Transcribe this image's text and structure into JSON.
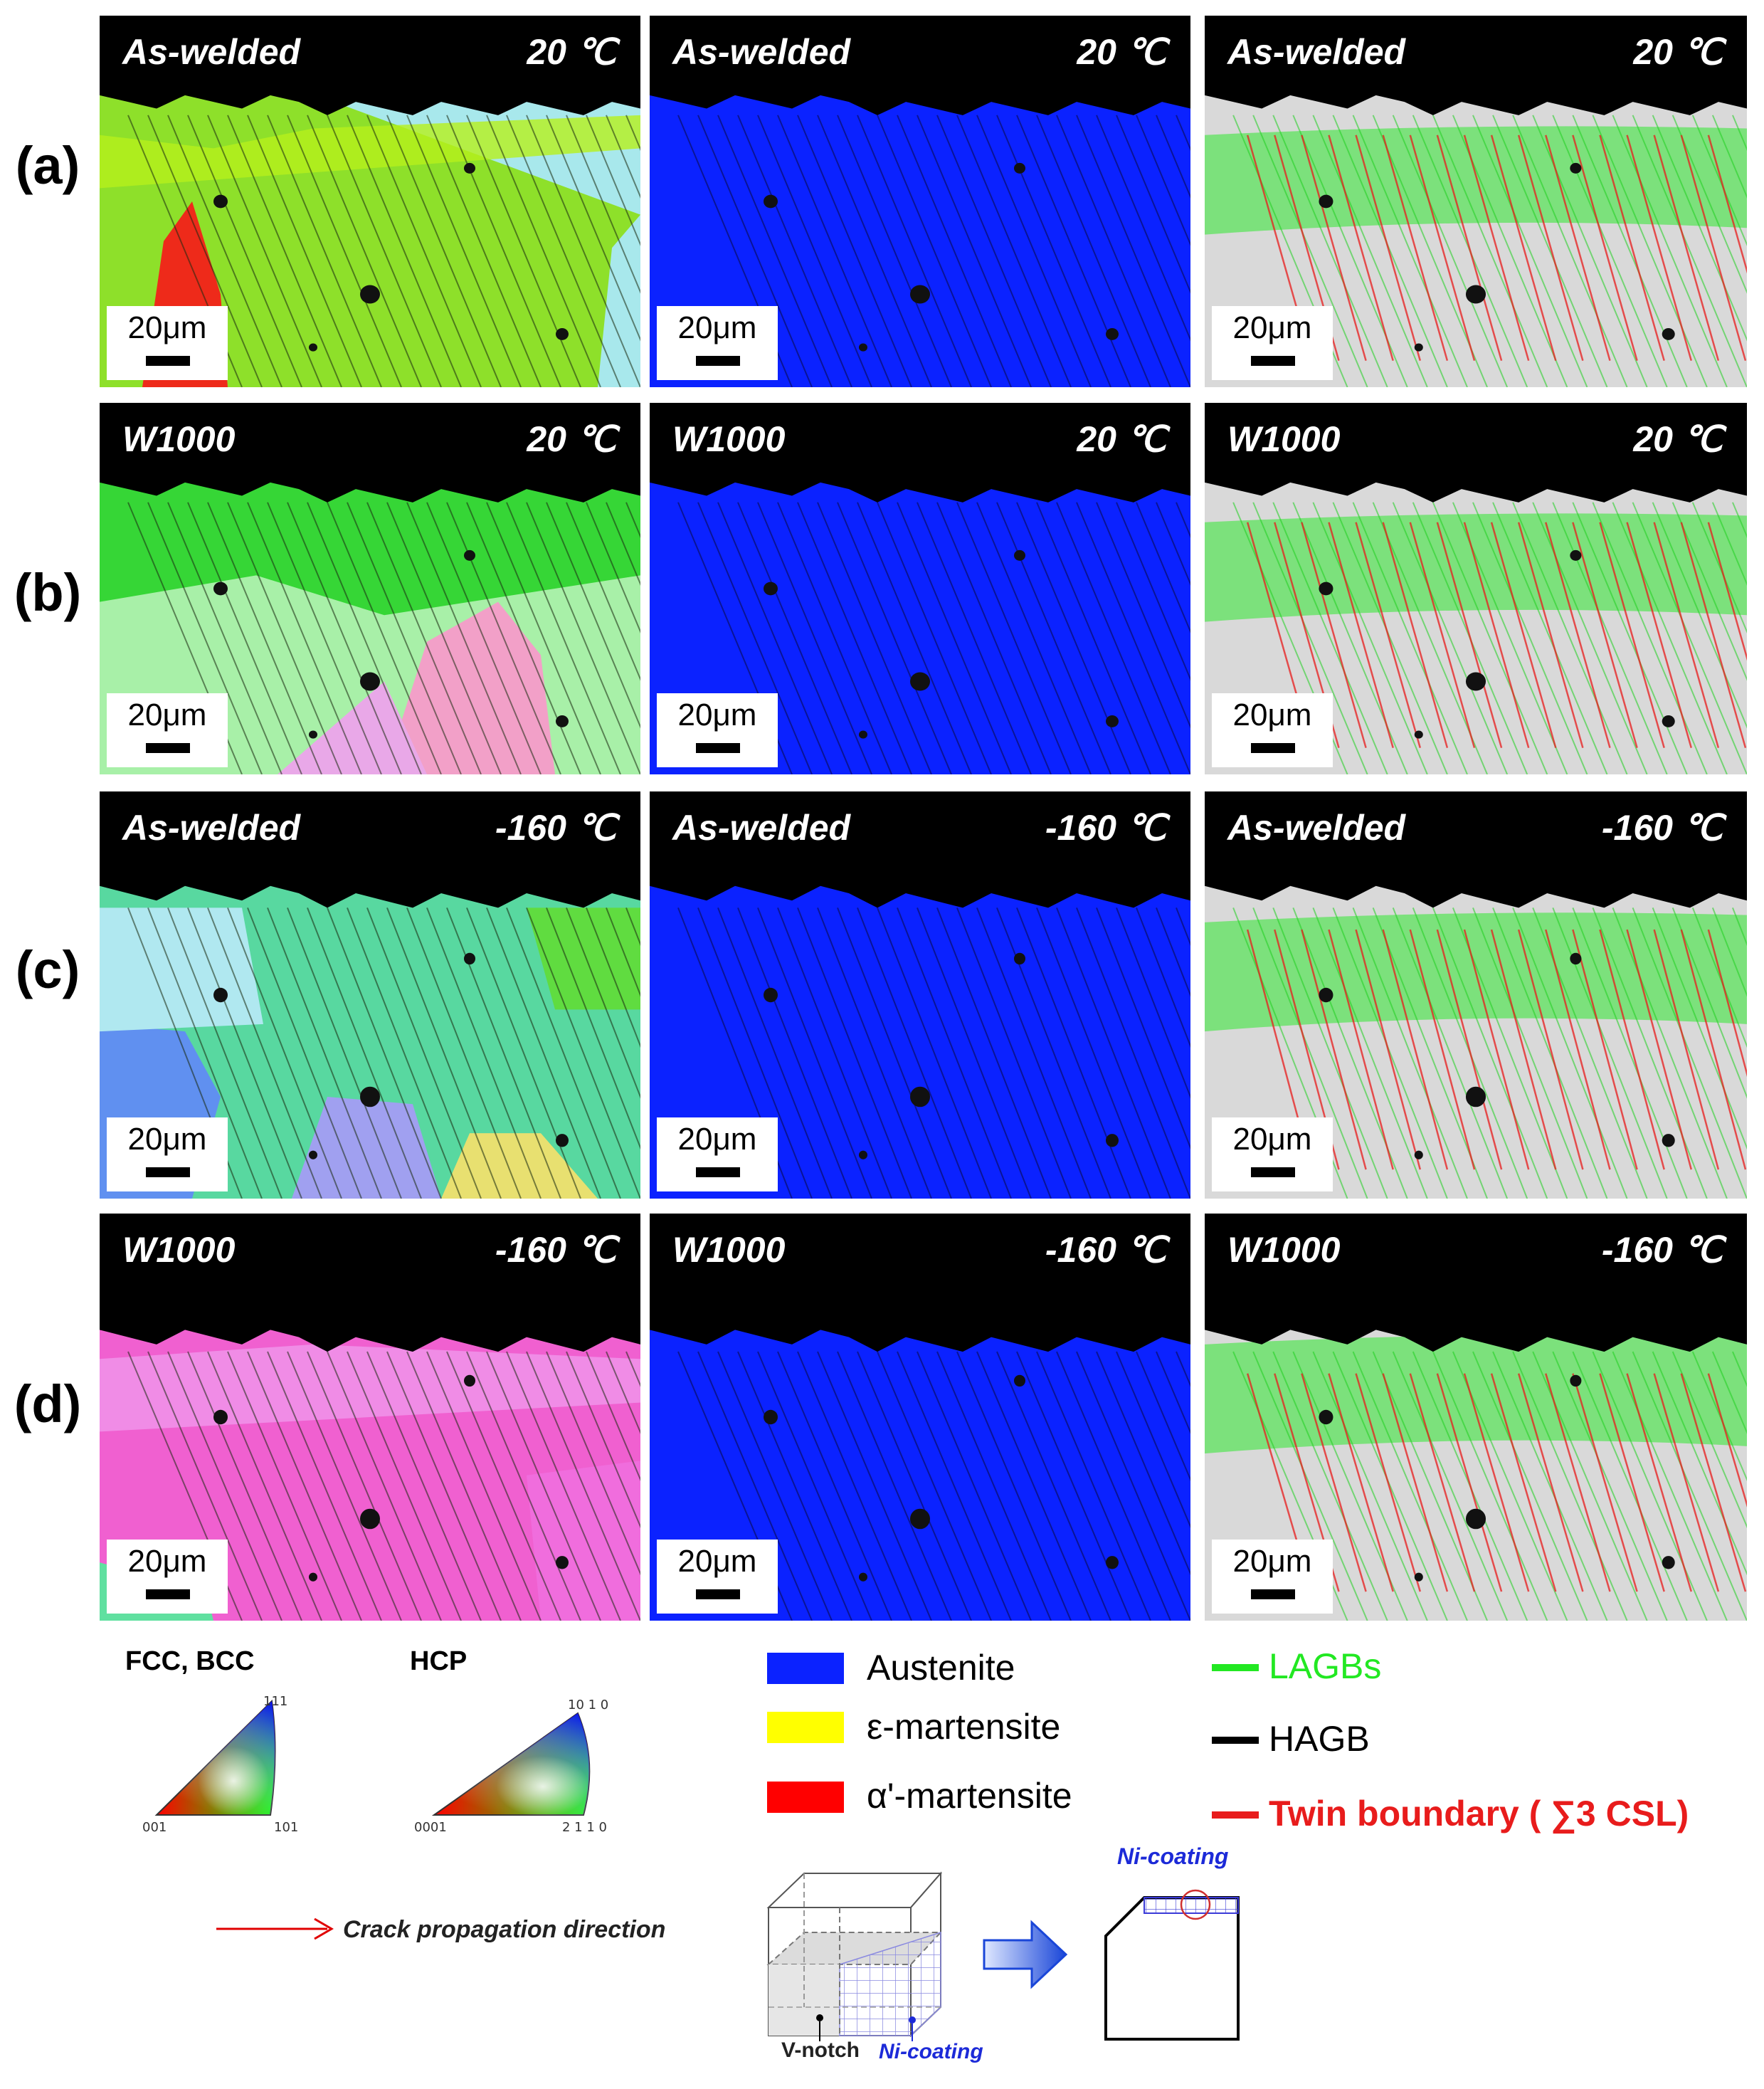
{
  "rows": [
    {
      "label": "(a)",
      "panels": [
        {
          "title": "As-welded",
          "temp": "20 ℃",
          "scale": "20μm",
          "map": "ipf-green"
        },
        {
          "title": "As-welded",
          "temp": "20 ℃",
          "scale": "20μm",
          "map": "phase"
        },
        {
          "title": "As-welded",
          "temp": "20 ℃",
          "scale": "20μm",
          "map": "boundary"
        }
      ]
    },
    {
      "label": "(b)",
      "panels": [
        {
          "title": "W1000",
          "temp": "20 ℃",
          "scale": "20μm",
          "map": "ipf-green-pink"
        },
        {
          "title": "W1000",
          "temp": "",
          "scale": "20μm",
          "map": "phase"
        },
        {
          "title": "W1000",
          "temp": "20 ℃",
          "scale": "20μm",
          "map": "boundary"
        }
      ]
    },
    {
      "label": "(c)",
      "panels": [
        {
          "title": "As-welded",
          "temp": "-160 ℃",
          "scale": "20μm",
          "map": "ipf-multi"
        },
        {
          "title": "As-welded",
          "temp": "-160 ℃",
          "scale": "20μm",
          "map": "phase"
        },
        {
          "title": "As-welded",
          "temp": "-160 ℃",
          "scale": "20μm",
          "map": "boundary"
        }
      ]
    },
    {
      "label": "(d)",
      "panels": [
        {
          "title": "W1000",
          "temp": "-160 ℃",
          "scale": "20μm",
          "map": "ipf-pink"
        },
        {
          "title": "W1000",
          "temp": "-160 ℃",
          "scale": "20μm",
          "map": "phase"
        },
        {
          "title": "W1000",
          "temp": "-160 ℃",
          "scale": "20μm",
          "map": "boundary"
        }
      ]
    }
  ],
  "row1_panel2_temp": "20 ℃",
  "ipf": {
    "fcc_title": "FCC, BCC",
    "fcc_corners": [
      "111",
      "001",
      "101"
    ],
    "hcp_title": "HCP",
    "hcp_corners": [
      "10 1 0",
      "0001",
      "2 1 1 0"
    ]
  },
  "phases": [
    {
      "name": "Austenite",
      "color": "#0b22ff"
    },
    {
      "name": "ε-martensite",
      "color": "#ffff00"
    },
    {
      "name": "α'-martensite",
      "color": "#ff0000"
    }
  ],
  "boundaries": [
    {
      "name": "LAGBs",
      "color": "#22e822"
    },
    {
      "name": "HAGB",
      "color": "#000000"
    },
    {
      "name": "Twin boundary ( ∑3 CSL)",
      "color": "#e81c1c"
    }
  ],
  "crack_label": "Crack propagation direction",
  "schematic": {
    "ni_coating_top": "Ni-coating",
    "v_notch": "V-notch",
    "ni_coating_bottom": "Ni-coating"
  }
}
